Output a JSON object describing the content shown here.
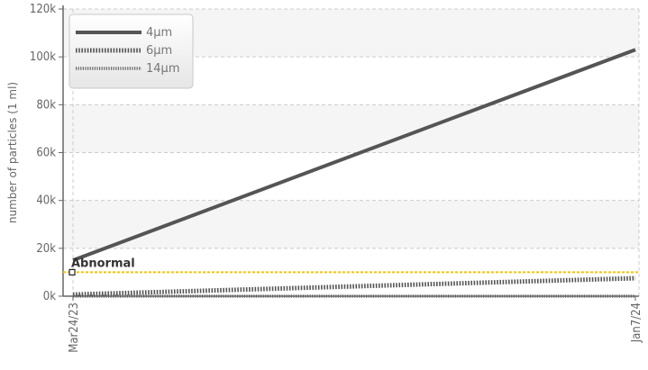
{
  "chart_data": {
    "type": "line",
    "title": "",
    "xlabel": "",
    "ylabel": "number of particles (1 ml)",
    "x": [
      "Mar24/23",
      "Jan7/24"
    ],
    "ylim": [
      0,
      120000
    ],
    "yticks": [
      0,
      20000,
      40000,
      60000,
      80000,
      100000,
      120000
    ],
    "ytick_labels": [
      "0k",
      "20k",
      "40k",
      "60k",
      "80k",
      "100k",
      "120k"
    ],
    "grid": true,
    "legend_position": "top-left",
    "series": [
      {
        "name": "4μm",
        "values": [
          15000,
          103000
        ],
        "color": "#555555",
        "style": "solid"
      },
      {
        "name": "6μm",
        "values": [
          700,
          7500
        ],
        "color": "#555555",
        "style": "dotted-thick"
      },
      {
        "name": "14μm",
        "values": [
          0,
          0
        ],
        "color": "#666666",
        "style": "dotted-thin"
      }
    ],
    "threshold": {
      "label": "Abnormal",
      "value": 10000,
      "color": "#f5c400"
    }
  }
}
